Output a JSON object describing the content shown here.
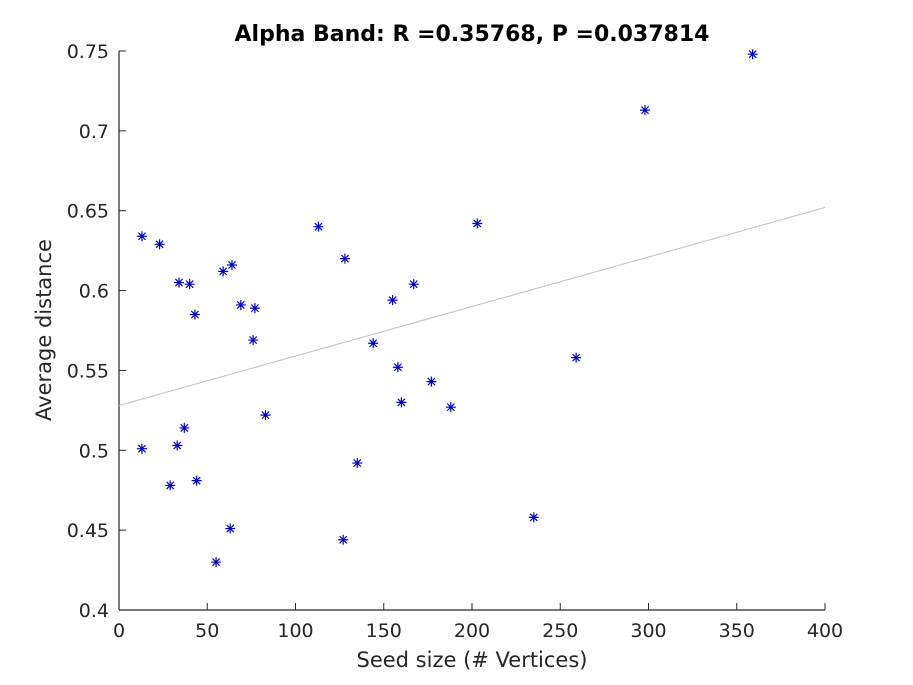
{
  "chart_data": {
    "type": "scatter",
    "title": "Alpha Band: R =0.35768, P =0.037814",
    "xlabel": "Seed size (# Vertices)",
    "ylabel": "Average distance",
    "xlim": [
      0,
      400
    ],
    "ylim": [
      0.4,
      0.75
    ],
    "xticks": [
      "0",
      "50",
      "100",
      "150",
      "200",
      "250",
      "300",
      "350",
      "400"
    ],
    "yticks": [
      "0.4",
      "0.45",
      "0.5",
      "0.55",
      "0.6",
      "0.65",
      "0.7",
      "0.75"
    ],
    "grid": false,
    "marker": "asterisk",
    "marker_color": "#0000cc",
    "fit_line_color": "#c0c0c0",
    "fit_line": {
      "x": [
        0,
        400
      ],
      "y": [
        0.528,
        0.652
      ]
    },
    "points": [
      {
        "x": 13,
        "y": 0.634
      },
      {
        "x": 23,
        "y": 0.629
      },
      {
        "x": 34,
        "y": 0.605
      },
      {
        "x": 40,
        "y": 0.604
      },
      {
        "x": 43,
        "y": 0.585
      },
      {
        "x": 13,
        "y": 0.501
      },
      {
        "x": 33,
        "y": 0.503
      },
      {
        "x": 37,
        "y": 0.514
      },
      {
        "x": 29,
        "y": 0.478
      },
      {
        "x": 44,
        "y": 0.481
      },
      {
        "x": 55,
        "y": 0.43
      },
      {
        "x": 63,
        "y": 0.451
      },
      {
        "x": 59,
        "y": 0.612
      },
      {
        "x": 64,
        "y": 0.616
      },
      {
        "x": 69,
        "y": 0.591
      },
      {
        "x": 77,
        "y": 0.589
      },
      {
        "x": 76,
        "y": 0.569
      },
      {
        "x": 83,
        "y": 0.522
      },
      {
        "x": 113,
        "y": 0.64
      },
      {
        "x": 128,
        "y": 0.62
      },
      {
        "x": 127,
        "y": 0.444
      },
      {
        "x": 135,
        "y": 0.492
      },
      {
        "x": 144,
        "y": 0.567
      },
      {
        "x": 155,
        "y": 0.594
      },
      {
        "x": 158,
        "y": 0.552
      },
      {
        "x": 160,
        "y": 0.53
      },
      {
        "x": 167,
        "y": 0.604
      },
      {
        "x": 177,
        "y": 0.543
      },
      {
        "x": 188,
        "y": 0.527
      },
      {
        "x": 203,
        "y": 0.642
      },
      {
        "x": 235,
        "y": 0.458
      },
      {
        "x": 259,
        "y": 0.558
      },
      {
        "x": 298,
        "y": 0.713
      },
      {
        "x": 359,
        "y": 0.748
      }
    ]
  }
}
